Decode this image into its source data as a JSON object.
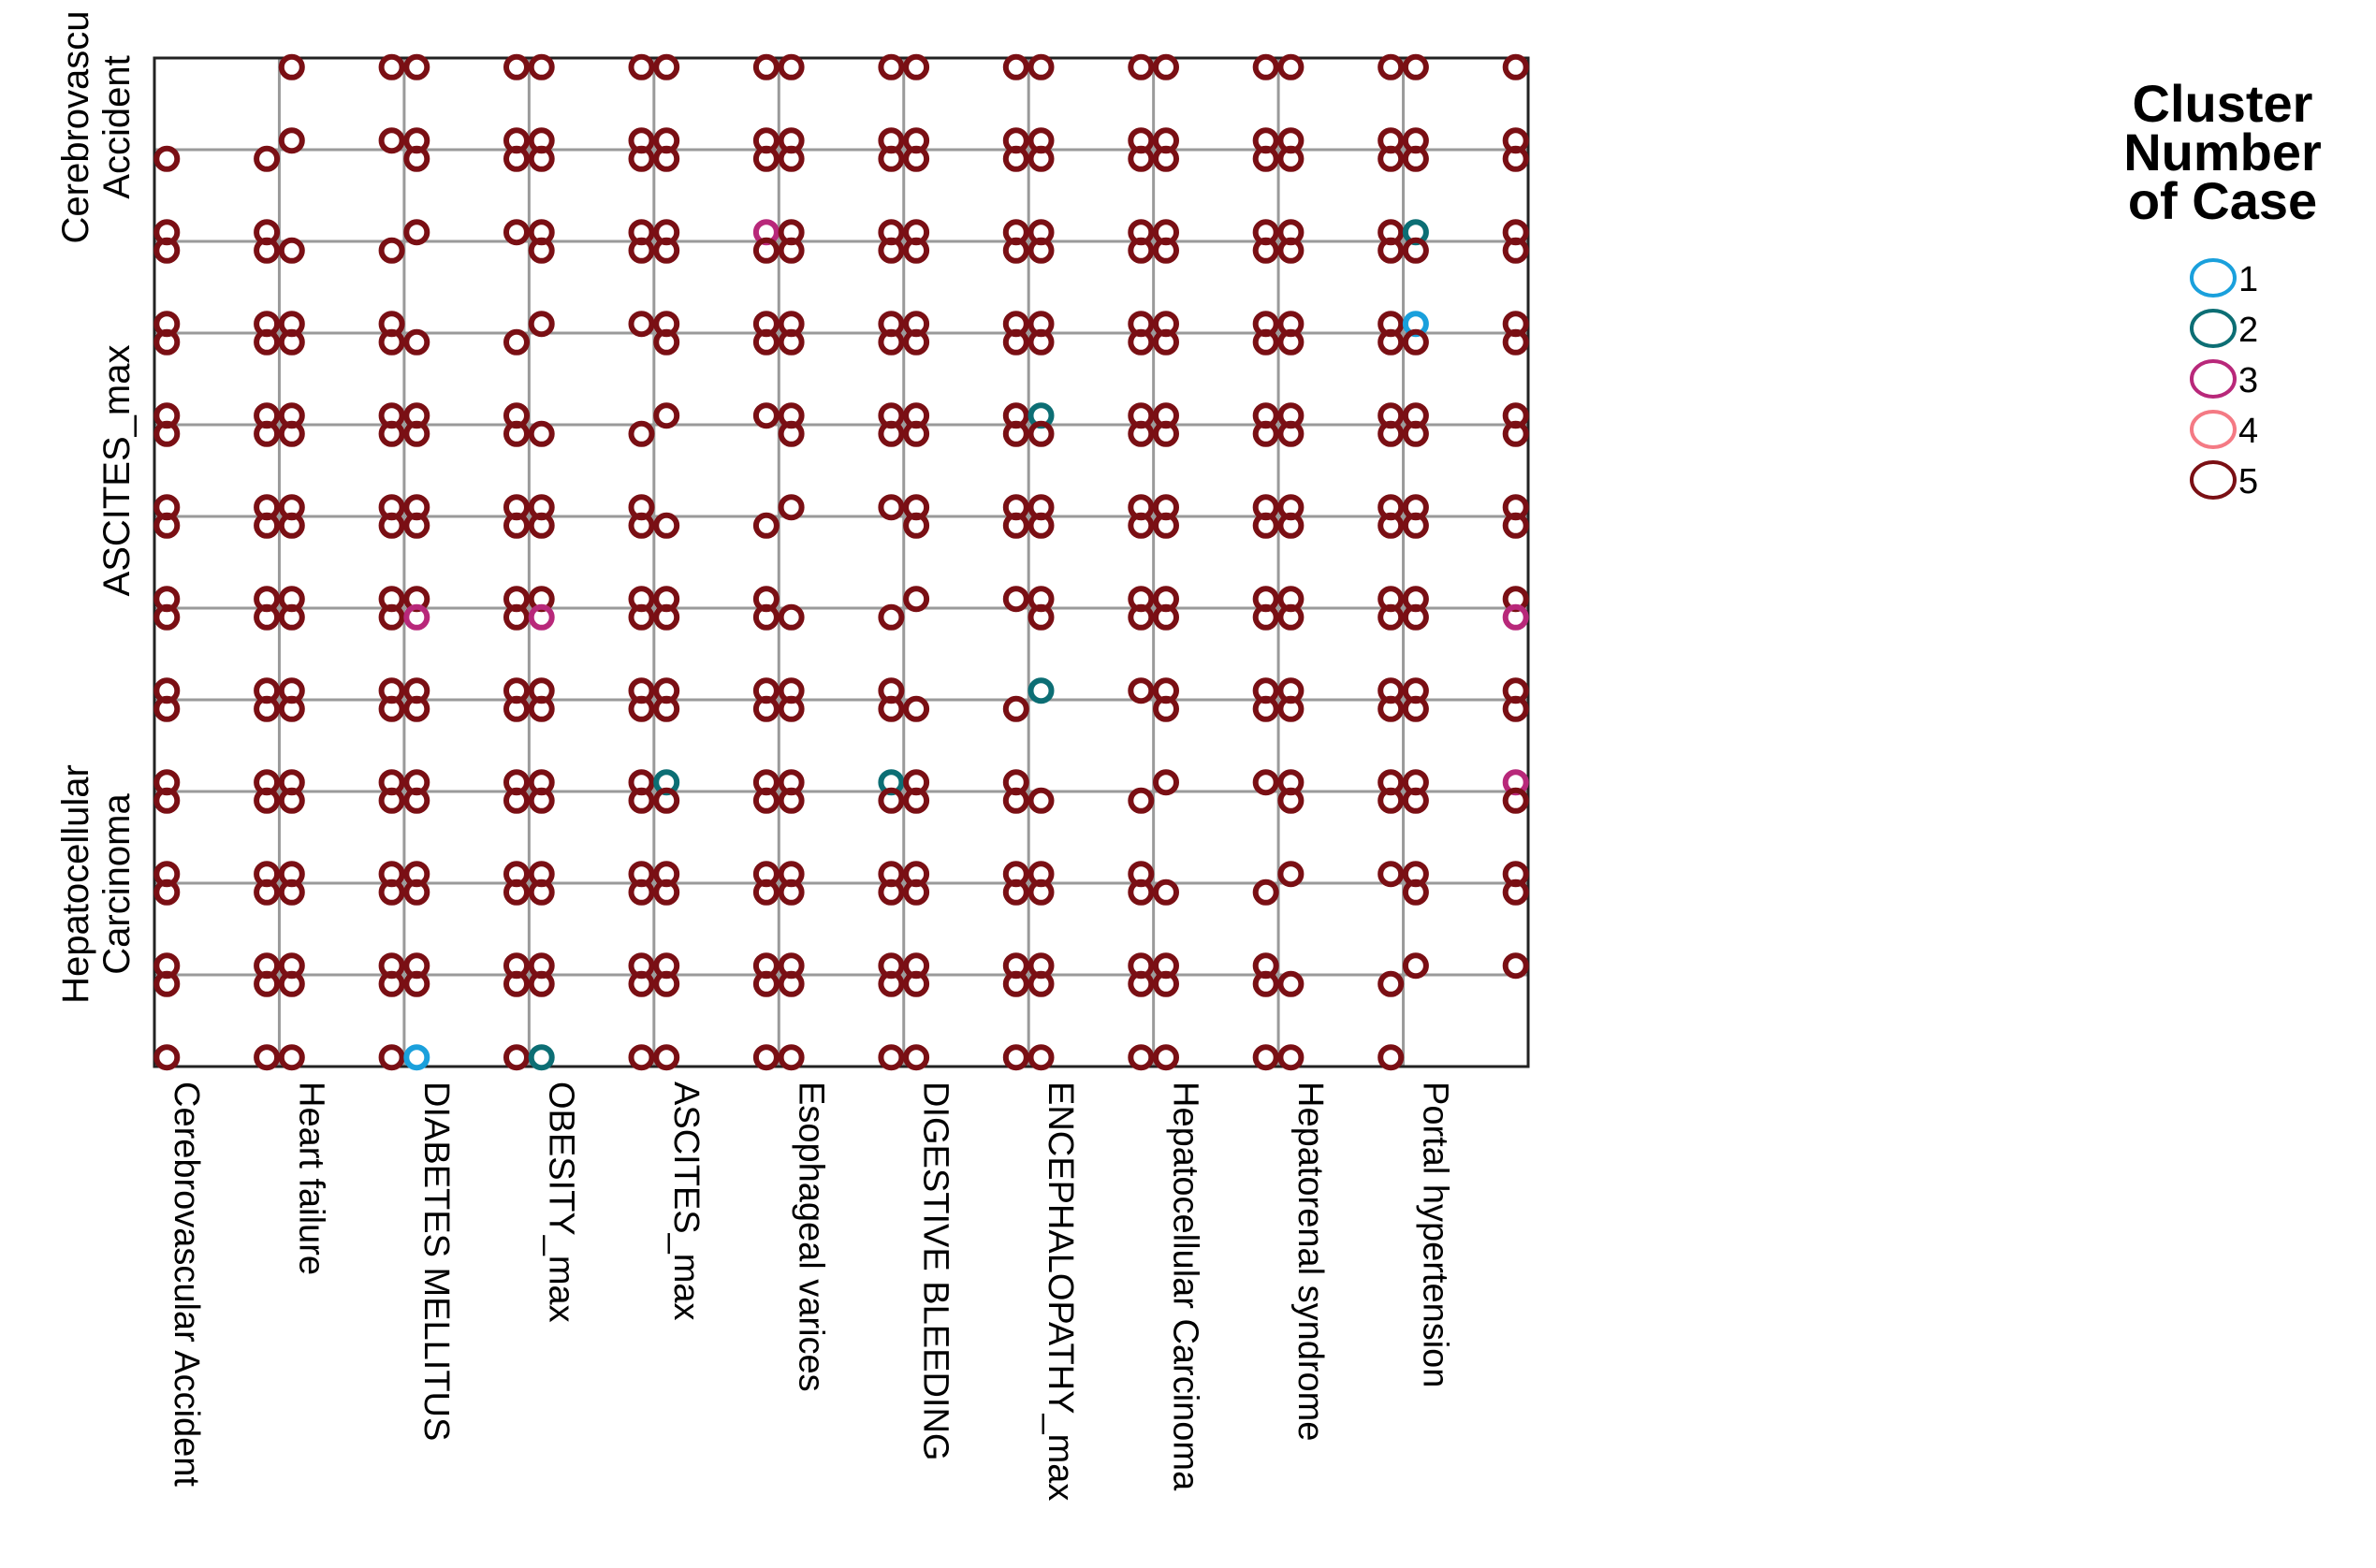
{
  "chart_data": {
    "type": "scatter",
    "subtype": "scatterplot-matrix",
    "title": "",
    "variables": [
      "Cerebrovascular Accident",
      "Heart failure",
      "DIABETES MELLITUS",
      "OBESITY_max",
      "ASCITES_max",
      "Esophageal varices",
      "DIGESTIVE BLEEDING",
      "ENCEPHALOPATHY_max",
      "Hepatocellular Carcinoma",
      "Hepatorenal syndrome",
      "Portal hypertension"
    ],
    "y_axis_labels": [
      {
        "lines": [
          "Cerebrovascu",
          "Accident"
        ],
        "variable_index": 0
      },
      {
        "lines": [
          "ASCITES_max"
        ],
        "variable_index": 4
      },
      {
        "lines": [
          "Hepatocellular",
          "Carcinoma"
        ],
        "variable_index": 8
      }
    ],
    "diagonal": "empty",
    "values_per_variable": [
      0,
      1
    ],
    "grid": true,
    "marker": "hollow-circle",
    "legend": {
      "title": [
        "Cluster",
        "Number",
        "of Case"
      ],
      "position": "top-right",
      "items": [
        {
          "label": "1",
          "color": "#1aa0dc"
        },
        {
          "label": "2",
          "color": "#0c6e74"
        },
        {
          "label": "3",
          "color": "#b8287a"
        },
        {
          "label": "4",
          "color": "#f47a84"
        },
        {
          "label": "5",
          "color": "#7a0f14"
        }
      ]
    },
    "dominant_cluster": "5",
    "minor_cluster_markers": [
      {
        "row": 1,
        "col": 4,
        "x": 1,
        "y": 0,
        "cluster": "3"
      },
      {
        "row": 1,
        "col": 10,
        "x": 0,
        "y": 0,
        "cluster": "2"
      },
      {
        "row": 3,
        "col": 7,
        "x": 0,
        "y": 0,
        "cluster": "2"
      },
      {
        "row": 6,
        "col": 7,
        "x": 0,
        "y": 0,
        "cluster": "2"
      },
      {
        "row": 6,
        "col": 2,
        "x": 0,
        "y": 1,
        "cluster": "3"
      },
      {
        "row": 6,
        "col": 3,
        "x": 0,
        "y": 1,
        "cluster": "3"
      },
      {
        "row": 6,
        "col": 10,
        "x": 1,
        "y": 1,
        "cluster": "3"
      },
      {
        "row": 7,
        "col": 4,
        "x": 0,
        "y": 0,
        "cluster": "2"
      },
      {
        "row": 7,
        "col": 5,
        "x": 1,
        "y": 0,
        "cluster": "2"
      },
      {
        "row": 7,
        "col": 10,
        "x": 1,
        "y": 0,
        "cluster": "3"
      },
      {
        "row": 10,
        "col": 2,
        "x": 0,
        "y": 0,
        "cluster": "1"
      },
      {
        "row": 10,
        "col": 3,
        "x": 0,
        "y": 0,
        "cluster": "2"
      },
      {
        "row": 2,
        "col": 10,
        "x": 0,
        "y": 0,
        "cluster": "1"
      }
    ]
  }
}
